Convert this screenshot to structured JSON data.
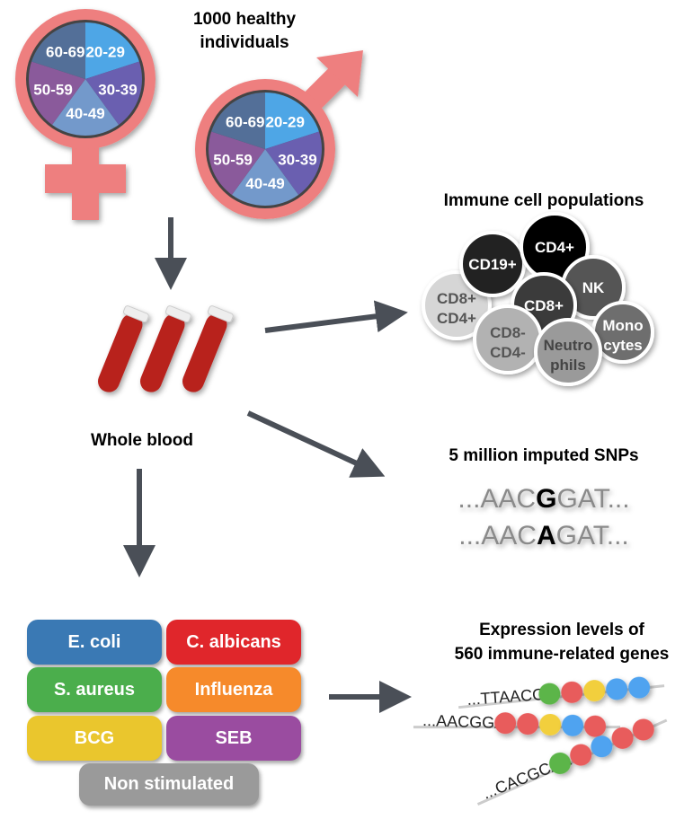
{
  "cohort": {
    "title_line1": "1000 healthy",
    "title_line2": "individuals",
    "age_groups": [
      {
        "label": "20-29",
        "color": "#4ea6e6"
      },
      {
        "label": "30-39",
        "color": "#6a5fb0"
      },
      {
        "label": "40-49",
        "color": "#7399cb"
      },
      {
        "label": "50-59",
        "color": "#8a5a9b"
      },
      {
        "label": "60-69",
        "color": "#536f98"
      }
    ],
    "symbol_color": "#ee7f7f"
  },
  "sample": {
    "label": "Whole blood"
  },
  "immune_cells": {
    "title": "Immune cell populations",
    "cells": [
      {
        "line1": "CD8+",
        "line2": "CD4+",
        "fill": "#d6d6d6",
        "text": "#555"
      },
      {
        "line1": "CD19+",
        "line2": "",
        "fill": "#222222",
        "text": "#fff"
      },
      {
        "line1": "CD4+",
        "line2": "",
        "fill": "#000000",
        "text": "#fff"
      },
      {
        "line1": "NK",
        "line2": "",
        "fill": "#555555",
        "text": "#fff"
      },
      {
        "line1": "CD8+",
        "line2": "",
        "fill": "#3a3a3a",
        "text": "#fff"
      },
      {
        "line1": "CD8-",
        "line2": "CD4-",
        "fill": "#b2b2b2",
        "text": "#555"
      },
      {
        "line1": "Mono",
        "line2": "cytes",
        "fill": "#6e6e6e",
        "text": "#fff"
      },
      {
        "line1": "Neutro",
        "line2": "phils",
        "fill": "#9a9a9a",
        "text": "#444"
      }
    ]
  },
  "snps": {
    "title": "5 million imputed SNPs",
    "seq1": {
      "pre": "...AAC",
      "variant": "G",
      "post": "GAT..."
    },
    "seq2": {
      "pre": "...AAC",
      "variant": "A",
      "post": "GAT..."
    }
  },
  "stimuli": [
    {
      "label": "E. coli",
      "color": "#3a79b4"
    },
    {
      "label": "C. albicans",
      "color": "#e0262b"
    },
    {
      "label": "S. aureus",
      "color": "#4bae4c"
    },
    {
      "label": "Influenza",
      "color": "#f68a2b"
    },
    {
      "label": "BCG",
      "color": "#eac62d"
    },
    {
      "label": "SEB",
      "color": "#9a4ca0"
    },
    {
      "label": "Non stimulated",
      "color": "#9a9a9a"
    }
  ],
  "expression": {
    "title_line1": "Expression levels of",
    "title_line2": "560 immune-related genes",
    "strands": [
      {
        "seq": "...TTAACGG",
        "beads": [
          "#5cb548",
          "#e85c5c",
          "#f2cf3e",
          "#4fa3f0",
          "#4fa3f0"
        ]
      },
      {
        "seq": "...AACGGAT",
        "beads": [
          "#e85c5c",
          "#e85c5c",
          "#f2cf3e",
          "#4fa3f0",
          "#e85c5c"
        ]
      },
      {
        "seq": "...CACGCAA",
        "beads": [
          "#5cb548",
          "#e85c5c",
          "#4fa3f0",
          "#e85c5c",
          "#e85c5c"
        ]
      }
    ]
  },
  "arrow_color": "#4a4f57"
}
